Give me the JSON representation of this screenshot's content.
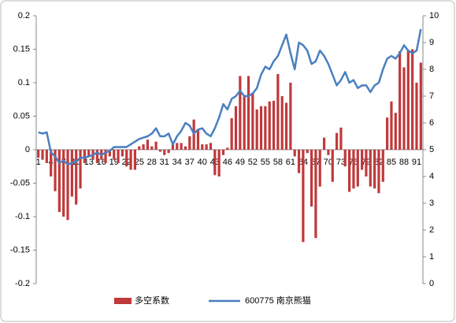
{
  "chart_data": {
    "type": "bar-line",
    "categories": [
      "1",
      null,
      null,
      "4",
      null,
      null,
      "7",
      null,
      null,
      "10",
      null,
      null,
      "13",
      null,
      null,
      "16",
      null,
      null,
      "19",
      null,
      null,
      "22",
      null,
      null,
      "25",
      null,
      null,
      "28",
      null,
      null,
      "31",
      null,
      null,
      "34",
      null,
      null,
      "37",
      null,
      null,
      "40",
      null,
      null,
      "43",
      null,
      null,
      "46",
      null,
      null,
      "49",
      null,
      null,
      "52",
      null,
      null,
      "55",
      null,
      null,
      "58",
      null,
      null,
      "61",
      null,
      null,
      "64",
      null,
      null,
      "67",
      null,
      null,
      "70",
      null,
      null,
      "73",
      null,
      null,
      "76",
      null,
      null,
      "79",
      null,
      null,
      "82",
      null,
      null,
      "85",
      null,
      null,
      "88",
      null,
      null,
      "91",
      null
    ],
    "series": [
      {
        "name": "多空系数",
        "color": "#c0393b",
        "kind": "bar",
        "values": [
          -0.012,
          -0.015,
          -0.02,
          -0.04,
          -0.062,
          -0.093,
          -0.1,
          -0.105,
          -0.07,
          -0.082,
          -0.058,
          -0.02,
          -0.01,
          -0.015,
          -0.02,
          -0.015,
          -0.02,
          -0.01,
          -0.015,
          -0.02,
          -0.01,
          -0.025,
          -0.03,
          -0.03,
          0.005,
          0.008,
          0.015,
          0.005,
          0.012,
          -0.003,
          -0.008,
          -0.005,
          0.008,
          0.01,
          0.01,
          0.005,
          0.02,
          0.045,
          0.03,
          0.008,
          0.008,
          0.01,
          -0.038,
          -0.04,
          -0.008,
          0.003,
          0.047,
          0.065,
          0.11,
          0.08,
          0.11,
          0.085,
          0.06,
          0.065,
          0.065,
          0.072,
          0.073,
          0.113,
          0.08,
          0.07,
          0.1,
          -0.01,
          -0.035,
          -0.138,
          -0.005,
          -0.085,
          -0.132,
          -0.055,
          0.018,
          -0.008,
          -0.048,
          0.025,
          0.033,
          -0.025,
          -0.063,
          -0.058,
          -0.055,
          -0.03,
          -0.04,
          -0.055,
          -0.058,
          -0.065,
          -0.048,
          0.048,
          0.072,
          0.055,
          0.147,
          0.123,
          0.148,
          0.15,
          0.1,
          0.13
        ]
      },
      {
        "name": "600775 南京熊猫",
        "color": "#4a7fc1",
        "kind": "line",
        "axis": "y2",
        "values": [
          5.65,
          5.6,
          5.65,
          4.9,
          4.75,
          4.5,
          4.6,
          4.45,
          4.5,
          4.55,
          4.7,
          4.7,
          4.75,
          4.8,
          4.9,
          4.8,
          4.9,
          4.95,
          5.1,
          5.1,
          5.1,
          5.1,
          5.2,
          5.3,
          5.4,
          5.45,
          5.5,
          5.6,
          5.8,
          5.5,
          5.5,
          5.6,
          5.2,
          5.5,
          5.7,
          6.0,
          5.9,
          5.6,
          5.75,
          5.8,
          5.6,
          5.5,
          5.8,
          6.2,
          6.7,
          6.5,
          6.9,
          7.0,
          7.2,
          7.0,
          7.0,
          7.1,
          7.3,
          7.8,
          8.1,
          8.0,
          8.3,
          8.5,
          8.9,
          9.3,
          8.6,
          8.0,
          9.0,
          8.9,
          8.7,
          8.2,
          8.3,
          8.7,
          8.5,
          8.2,
          7.8,
          7.4,
          7.6,
          7.9,
          7.5,
          7.6,
          7.3,
          7.4,
          7.4,
          7.15,
          7.4,
          7.5,
          8.0,
          8.4,
          8.5,
          8.4,
          8.6,
          8.9,
          8.7,
          8.6,
          8.7,
          9.5
        ]
      }
    ],
    "ylim": [
      -0.2,
      0.2
    ],
    "yticks": [
      -0.2,
      -0.15,
      -0.1,
      -0.05,
      0,
      0.05,
      0.1,
      0.15,
      0.2
    ],
    "y2lim": [
      0,
      10
    ],
    "y2ticks": [
      0,
      1,
      2,
      3,
      4,
      5,
      6,
      7,
      8,
      9,
      10
    ],
    "legend": "bottom",
    "grid": false
  }
}
